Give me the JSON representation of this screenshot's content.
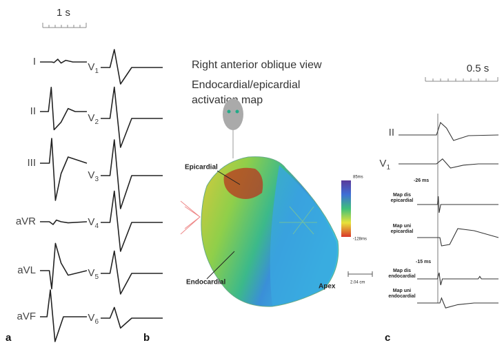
{
  "panel_a": {
    "label": "a",
    "scale": "1 s",
    "limb_leads": [
      "I",
      "II",
      "III",
      "aVR",
      "aVL",
      "aVF"
    ],
    "precordial_leads": [
      {
        "base": "V",
        "sub": "1"
      },
      {
        "base": "V",
        "sub": "2"
      },
      {
        "base": "V",
        "sub": "3"
      },
      {
        "base": "V",
        "sub": "4"
      },
      {
        "base": "V",
        "sub": "5"
      },
      {
        "base": "V",
        "sub": "6"
      }
    ]
  },
  "panel_b": {
    "label": "b",
    "title_lines": [
      "Right anterior oblique view",
      "Endocardial/epicardial",
      "activation map"
    ],
    "colorbar_top": "85ms",
    "colorbar_bottom": "-128ms",
    "epicardial": "Epicardial",
    "endocardial": "Endocardial",
    "apex": "Apex",
    "scale": "2.04 cm"
  },
  "panel_c": {
    "label": "c",
    "scale": "0.5 s",
    "lead_ii": "II",
    "lead_v1": {
      "base": "V",
      "sub": "1"
    },
    "delay_epi": "-26 ms",
    "delay_endo": "-15 ms",
    "map_dis_epi": [
      "Map dis",
      "epicardial"
    ],
    "map_uni_epi": [
      "Map uni",
      "epicardial"
    ],
    "map_dis_endo": [
      "Map dis",
      "endocardial"
    ],
    "map_uni_endo": [
      "Map uni",
      "endocardial"
    ]
  }
}
